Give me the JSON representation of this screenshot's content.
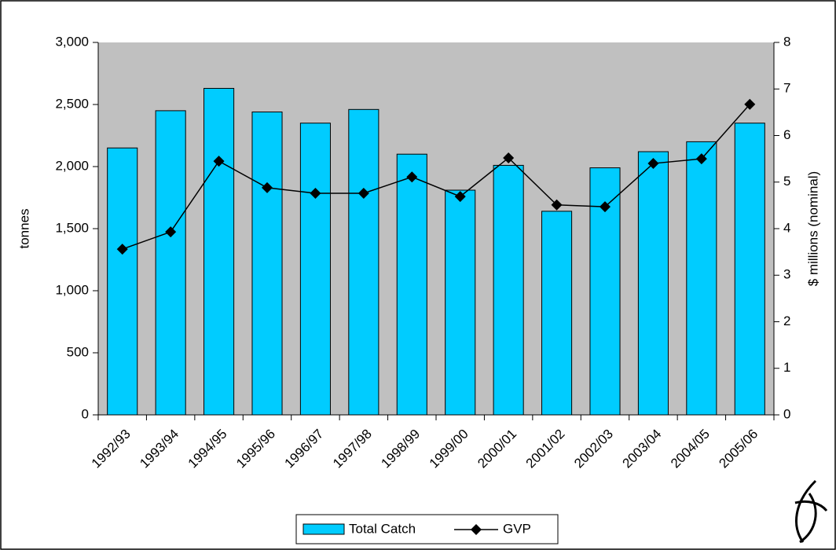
{
  "chart_data": {
    "type": "bar_line",
    "categories": [
      "1992/93",
      "1993/94",
      "1994/95",
      "1995/96",
      "1996/97",
      "1997/98",
      "1998/99",
      "1999/00",
      "2000/01",
      "2001/02",
      "2002/03",
      "2003/04",
      "2004/05",
      "2005/06"
    ],
    "series": [
      {
        "name": "Total Catch",
        "type": "bar",
        "color": "#00ccff",
        "values": [
          2150,
          2450,
          2630,
          2440,
          2350,
          2460,
          2100,
          1810,
          2010,
          1640,
          1990,
          2120,
          2200,
          2350
        ]
      },
      {
        "name": "GVP",
        "type": "line",
        "axis": "y2",
        "color": "#000000",
        "values": [
          3.56,
          3.93,
          5.45,
          4.88,
          4.76,
          4.76,
          5.11,
          4.69,
          5.52,
          4.51,
          4.47,
          5.4,
          5.5,
          6.67
        ]
      }
    ],
    "ylabel": "tonnes",
    "y2label": "$ millions (nominal)",
    "ylim": [
      0,
      3000
    ],
    "yticks": [
      0,
      500,
      {
        "value": 1000,
        "label": "1,000"
      },
      {
        "value": 1500,
        "label": "1,500"
      },
      {
        "value": 2000,
        "label": "2,000"
      },
      {
        "value": 2500,
        "label": "2,500"
      },
      {
        "value": 3000,
        "label": "3,000"
      }
    ],
    "y2lim": [
      0,
      8
    ],
    "y2ticks": [
      0,
      1,
      2,
      3,
      4,
      5,
      6,
      7,
      8
    ],
    "plot_background": "#c0c0c0",
    "grid": false,
    "legend": "bottom"
  }
}
